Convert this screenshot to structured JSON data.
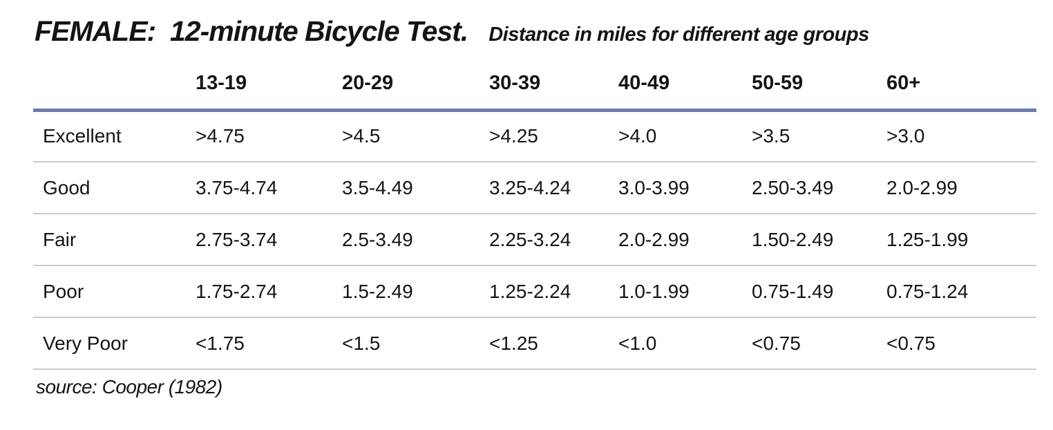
{
  "title": "FEMALE:  12-minute Bicycle Test.",
  "subtitle": "Distance in miles for different age groups",
  "source": "source: Cooper (1982)",
  "table": {
    "age_group_headers": [
      "13-19",
      "20-29",
      "30-39",
      "40-49",
      "50-59",
      "60+"
    ],
    "rows": [
      {
        "label": "Excellent",
        "values": [
          ">4.75",
          ">4.5",
          ">4.25",
          ">4.0",
          ">3.5",
          ">3.0"
        ]
      },
      {
        "label": "Good",
        "values": [
          "3.75-4.74",
          "3.5-4.49",
          "3.25-4.24",
          "3.0-3.99",
          "2.50-3.49",
          "2.0-2.99"
        ]
      },
      {
        "label": "Fair",
        "values": [
          "2.75-3.74",
          "2.5-3.49",
          "2.25-3.24",
          "2.0-2.99",
          "1.50-2.49",
          "1.25-1.99"
        ]
      },
      {
        "label": "Poor",
        "values": [
          "1.75-2.74",
          "1.5-2.49",
          "1.25-2.24",
          "1.0-1.99",
          "0.75-1.49",
          "0.75-1.24"
        ]
      },
      {
        "label": "Very Poor",
        "values": [
          "<1.75",
          "<1.5",
          "<1.25",
          "<1.0",
          "<0.75",
          "<0.75"
        ]
      }
    ]
  },
  "colors": {
    "header_rule": "#6b7aac",
    "row_rule": "#cccccc",
    "text": "#141414",
    "background": "#ffffff"
  }
}
